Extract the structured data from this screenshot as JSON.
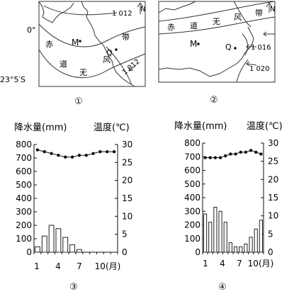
{
  "maps": [
    {
      "label": "①",
      "lat_top": "0°",
      "lat_bottom": "23°5′S",
      "north": "N",
      "isobar_top": "1 012",
      "isobar_bottom": "1 012",
      "point_m": "M",
      "point_q": "Q",
      "trade_wind_chars": [
        "赤",
        "道",
        "无",
        "风",
        "带"
      ]
    },
    {
      "label": "②",
      "north": "N",
      "isobar_a": "1 016",
      "isobar_b": "1 020",
      "point_m": "M",
      "point_q": "Q",
      "trade_wind_chars": [
        "赤",
        "道",
        "无",
        "风",
        "带"
      ]
    }
  ],
  "charts": [
    {
      "label": "③",
      "left_title": "降水量(mm)",
      "right_title": "温度(℃)",
      "x_ticks": [
        "1",
        "4",
        "7",
        "10(月)"
      ]
    },
    {
      "label": "④",
      "left_title": "降水量(mm)",
      "right_title": "温度(℃)",
      "x_ticks": [
        "1",
        "4",
        "7",
        "10(月)"
      ]
    }
  ],
  "chart_data": [
    {
      "type": "bar",
      "categories": [
        "1",
        "2",
        "3",
        "4",
        "5",
        "6",
        "7",
        "8",
        "9",
        "10",
        "11",
        "12"
      ],
      "series": [
        {
          "values": [
            40,
            120,
            200,
            175,
            110,
            55,
            20,
            0,
            0,
            0,
            0,
            0
          ]
        },
        {
          "values": [
            28.5,
            28,
            27.5,
            27,
            26.5,
            26.5,
            27,
            27,
            27.5,
            28,
            28,
            28
          ]
        }
      ],
      "ylim": [
        0,
        800
      ],
      "y2lim": [
        0,
        30
      ],
      "yticks": [
        0,
        100,
        200,
        300,
        400,
        500,
        600,
        700,
        800
      ],
      "y2ticks": [
        0,
        5,
        10,
        15,
        20,
        25,
        30
      ]
    },
    {
      "type": "bar",
      "categories": [
        "1",
        "2",
        "3",
        "4",
        "5",
        "6",
        "7",
        "8",
        "9",
        "10",
        "11",
        "12"
      ],
      "series": [
        {
          "values": [
            280,
            220,
            330,
            300,
            220,
            70,
            40,
            40,
            60,
            110,
            170,
            235
          ]
        },
        {
          "values": [
            26,
            26,
            26,
            26,
            26.5,
            27,
            27,
            27.5,
            27.5,
            28,
            27.5,
            27
          ]
        }
      ],
      "ylim": [
        0,
        800
      ],
      "y2lim": [
        0,
        30
      ],
      "yticks": [
        0,
        100,
        200,
        300,
        400,
        500,
        600,
        700,
        800
      ],
      "y2ticks": [
        0,
        5,
        10,
        15,
        20,
        25,
        30
      ]
    }
  ]
}
